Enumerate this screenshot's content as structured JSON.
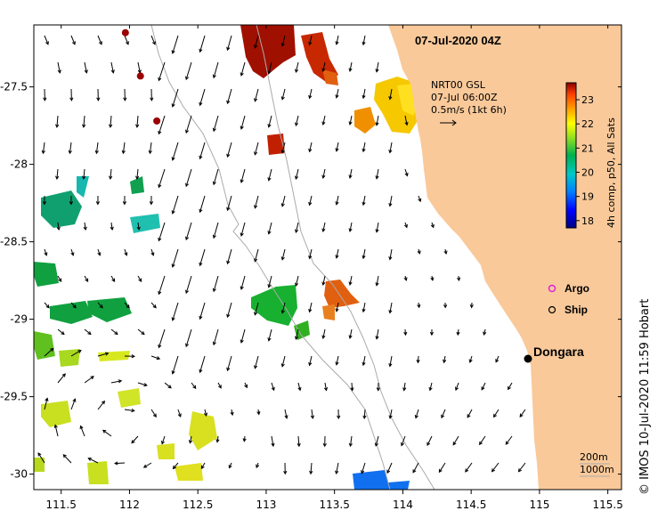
{
  "map": {
    "title": "07-Jul-2020 04Z",
    "lon_range": [
      111.3,
      115.6
    ],
    "lat_range": [
      -30.1,
      -27.1
    ],
    "x_ticks": [
      {
        "value": 111.5,
        "label": "111.5"
      },
      {
        "value": 112,
        "label": "112"
      },
      {
        "value": 112.5,
        "label": "112.5"
      },
      {
        "value": 113,
        "label": "113"
      },
      {
        "value": 113.5,
        "label": "113.5"
      },
      {
        "value": 114,
        "label": "114"
      },
      {
        "value": 114.5,
        "label": "114.5"
      },
      {
        "value": 115,
        "label": "115"
      },
      {
        "value": 115.5,
        "label": "115.5"
      }
    ],
    "y_ticks": [
      {
        "value": -27.5,
        "label": "-27.5"
      },
      {
        "value": -28,
        "label": "-28"
      },
      {
        "value": -28.5,
        "label": "-28.5"
      },
      {
        "value": -29,
        "label": "-29"
      },
      {
        "value": -29.5,
        "label": "-29.5"
      },
      {
        "value": -30,
        "label": "-30"
      }
    ],
    "land_color": "#f9c99a",
    "bathymetry_color": "#aaaaaa"
  },
  "current_note": {
    "line1": "NRT00 GSL",
    "line2": "07-Jul 06:00Z",
    "line3": "0.5m/s (1kt 6h)"
  },
  "colorbar": {
    "label": "4h comp, p50, All Sats",
    "min": 17.7,
    "max": 23.7,
    "ticks": [
      {
        "value": 18,
        "label": "18"
      },
      {
        "value": 19,
        "label": "19"
      },
      {
        "value": 20,
        "label": "20"
      },
      {
        "value": 21,
        "label": "21"
      },
      {
        "value": 22,
        "label": "22"
      },
      {
        "value": 23,
        "label": "23"
      }
    ]
  },
  "legend": {
    "argo_label": "Argo",
    "argo_color": "#dd22dd",
    "ship_label": "Ship"
  },
  "places": [
    {
      "name": "Dongara",
      "lon": 114.93,
      "lat": -29.25
    }
  ],
  "contour_labels": {
    "line1": "200m",
    "line2": "1000m"
  },
  "credit": "©  IMOS 10-Jul-2020 11:59 Hobart",
  "dark_markers": [
    {
      "lon": 111.97,
      "lat": -27.15
    },
    {
      "lon": 112.08,
      "lat": -27.43
    },
    {
      "lon": 112.2,
      "lat": -27.72
    }
  ]
}
